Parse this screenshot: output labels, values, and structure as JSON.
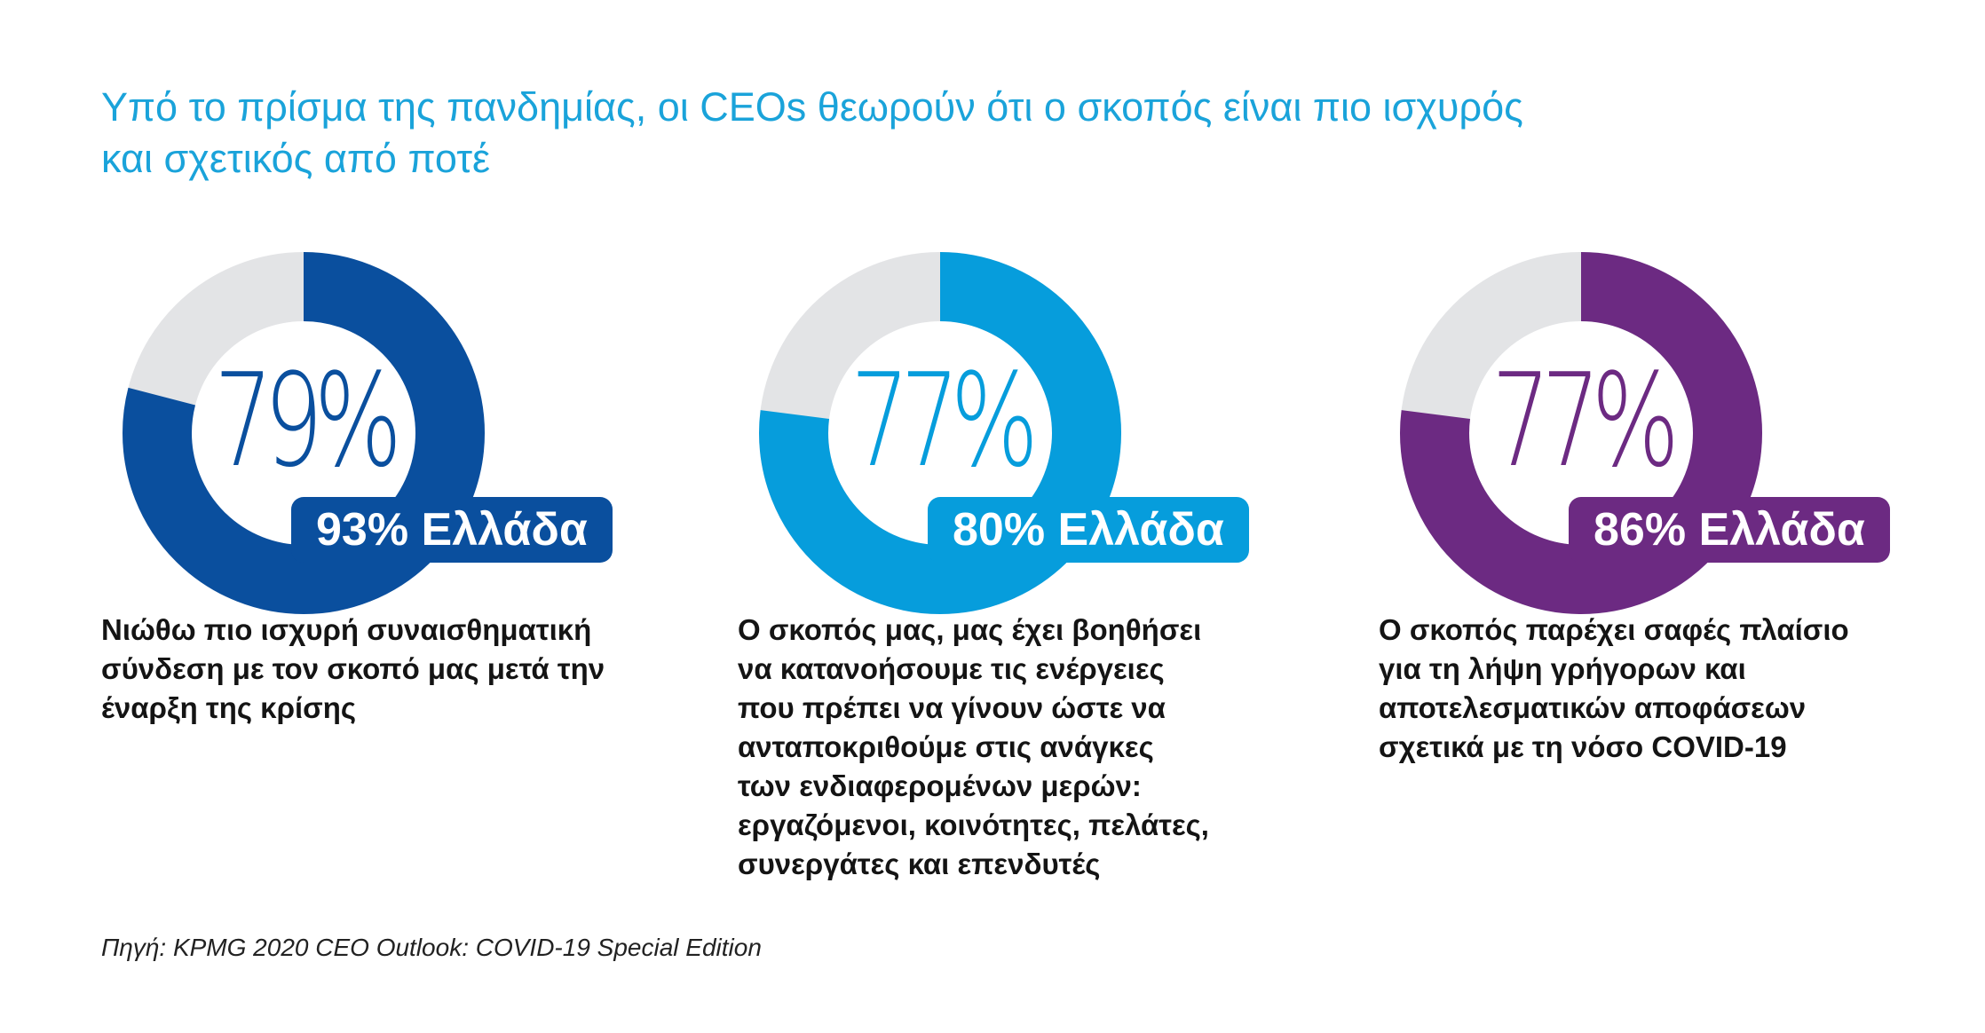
{
  "title": {
    "line1": "Υπό το πρίσμα της πανδημίας, οι CEOs θεωρούν ότι ο σκοπός είναι πιο ισχυρός",
    "line2": "και σχετικός από ποτέ"
  },
  "chart_data": {
    "type": "donut",
    "title": "Υπό το πρίσμα της πανδημίας, οι CEOs θεωρούν ότι ο σκοπός είναι πιο ισχυρός και σχετικός από ποτέ",
    "remainder_color": "#e3e4e6",
    "series": [
      {
        "value": 79,
        "value_label": "79%",
        "greece_label": "93% Ελλάδα",
        "color": "#0a4f9e",
        "desc": [
          "Νιώθω πιο ισχυρή συναισθηματική",
          "σύνδεση με τον σκοπό μας μετά την",
          "έναρξη της κρίσης"
        ]
      },
      {
        "value": 77,
        "value_label": "77%",
        "greece_label": "80% Ελλάδα",
        "color": "#069ddc",
        "desc": [
          "Ο σκοπός μας, μας έχει βοηθήσει",
          "να κατανοήσουμε τις ενέργειες",
          "που πρέπει να γίνουν ώστε να",
          "ανταποκριθούμε στις ανάγκες",
          "των ενδιαφερομένων μερών:",
          "εργαζόμενοι, κοινότητες, πελάτες,",
          "συνεργάτες και επενδυτές"
        ]
      },
      {
        "value": 77,
        "value_label": "77%",
        "greece_label": "86% Ελλάδα",
        "color": "#6c2a82",
        "desc": [
          "Ο σκοπός παρέχει σαφές πλαίσιο",
          "για τη λήψη γρήγορων και",
          "αποτελεσματικών αποφάσεων",
          "σχετικά με τη νόσο COVID-19"
        ]
      }
    ]
  },
  "source": "Πηγή: KPMG 2020 CEO Outlook: COVID-19 Special Edition"
}
